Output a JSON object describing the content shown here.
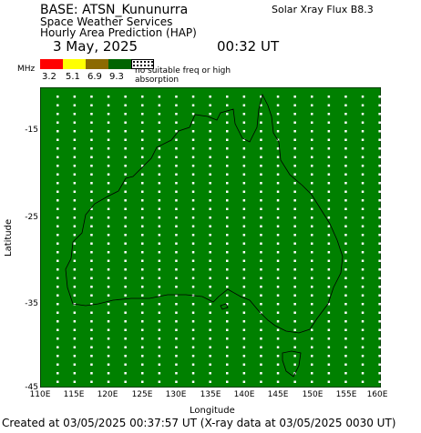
{
  "header": {
    "base_title": "BASE: ATSN_Kununurra",
    "agency": "Space Weather Services",
    "product": "Hourly Area Prediction (HAP)",
    "xray_flux": "Solar Xray Flux B8.3",
    "date": "3 May, 2025",
    "time": "00:32 UT"
  },
  "legend": {
    "unit": "MHz",
    "colors": [
      "#ff0000",
      "#ffff00",
      "#8c6a00",
      "#006400"
    ],
    "ticks": [
      "3.2",
      "5.1",
      "6.9",
      "9.3"
    ],
    "no_freq_text": "no suitable freq or high absorption"
  },
  "map": {
    "fill_color": "#008000",
    "grid_dot_color": "#ffffff",
    "lon_range": [
      110,
      160
    ],
    "lat_range": [
      -45,
      -10
    ],
    "x_ticks": [
      "110E",
      "115E",
      "120E",
      "125E",
      "130E",
      "135E",
      "140E",
      "145E",
      "150E",
      "155E",
      "160E"
    ],
    "y_ticks": [
      "-15",
      "-25",
      "-35",
      "-45"
    ],
    "x_label": "Longitude",
    "y_label": "Latitude"
  },
  "footer": "Created at 03/05/2025 00:37:57 UT (X-ray data at 03/05/2025 0030 UT)"
}
